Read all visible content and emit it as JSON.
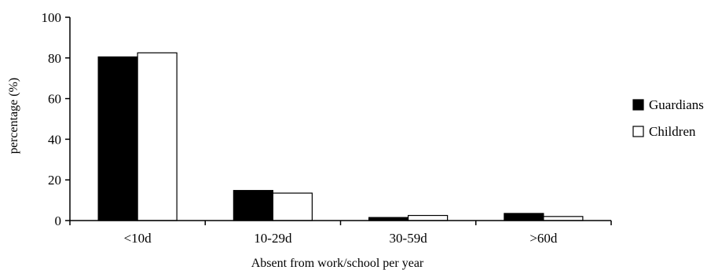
{
  "chart_data": {
    "type": "bar",
    "title": "",
    "xlabel": "Absent from work/school per year",
    "ylabel": "percentage (%)",
    "categories": [
      "<10d",
      "10-29d",
      "30-59d",
      ">60d"
    ],
    "series": [
      {
        "name": "Guardians",
        "values": [
          80.5,
          14.8,
          1.5,
          3.5
        ],
        "color": "#000000"
      },
      {
        "name": "Children",
        "values": [
          82.5,
          13.5,
          2.5,
          2.0
        ],
        "color": "#ffffff"
      }
    ],
    "ylim": [
      0,
      100
    ],
    "yticks": [
      "0",
      "20",
      "40",
      "60",
      "80",
      "100"
    ],
    "grid": false,
    "legend_position": "right"
  }
}
